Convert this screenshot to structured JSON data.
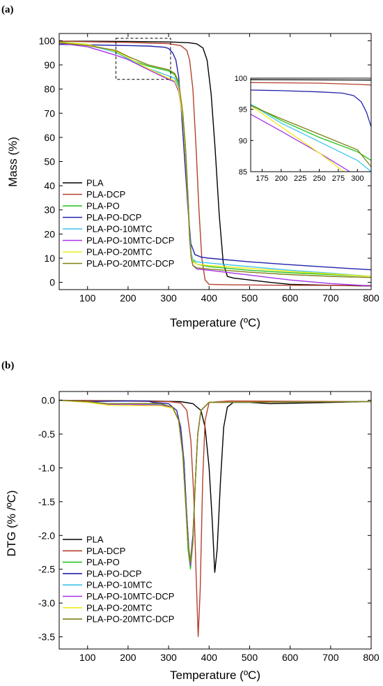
{
  "chart_data": [
    {
      "type": "line",
      "panel_label": "(a)",
      "title": "",
      "xlabel": "Temperature (ºC)",
      "ylabel": "Mass (%)",
      "xlim": [
        30,
        800
      ],
      "ylim": [
        -3,
        103
      ],
      "xticks": [
        100,
        200,
        300,
        400,
        500,
        600,
        700,
        800
      ],
      "yticks": [
        0,
        10,
        20,
        30,
        40,
        50,
        60,
        70,
        80,
        90,
        100
      ],
      "legend": "left",
      "colors": {
        "PLA": "#000000",
        "PLA-DCP": "#b5402c",
        "PLA-PO": "#22c41c",
        "PLA-PO-DCP": "#2222aa",
        "PLA-PO-10MTC": "#3fc4ee",
        "PLA-PO-10MTC-DCP": "#a632e8",
        "PLA-PO-20MTC": "#f0ec1c",
        "PLA-PO-20MTC-DCP": "#808017"
      },
      "series": [
        {
          "name": "PLA",
          "x": [
            30,
            100,
            200,
            300,
            350,
            370,
            385,
            395,
            405,
            415,
            425,
            435,
            445,
            460,
            500,
            550,
            600,
            700,
            800
          ],
          "y": [
            99.8,
            99.8,
            99.7,
            99.5,
            99.2,
            98.7,
            97,
            92,
            78,
            55,
            28,
            8,
            2.5,
            1.8,
            1,
            0,
            -0.8,
            -1.2,
            -1.5
          ]
        },
        {
          "name": "PLA-DCP",
          "x": [
            30,
            100,
            200,
            300,
            330,
            345,
            352,
            360,
            368,
            375,
            382,
            390,
            400,
            450,
            600,
            800
          ],
          "y": [
            99.8,
            99.6,
            99.3,
            98.8,
            98,
            96,
            92,
            80,
            55,
            30,
            10,
            1,
            -0.8,
            -1,
            -1.2,
            -1.3
          ]
        },
        {
          "name": "PLA-PO",
          "x": [
            30,
            100,
            170,
            200,
            250,
            300,
            315,
            325,
            335,
            342,
            348,
            352,
            356,
            360,
            370,
            400,
            500,
            600,
            700,
            800
          ],
          "y": [
            99.5,
            98.5,
            95.2,
            92.5,
            89.5,
            87.5,
            86,
            82,
            70,
            55,
            35,
            20,
            12,
            9,
            7.5,
            6.5,
            5,
            4,
            3.2,
            2.5
          ]
        },
        {
          "name": "PLA-PO-DCP",
          "x": [
            30,
            100,
            170,
            200,
            250,
            290,
            300,
            310,
            318,
            325,
            332,
            340,
            348,
            355,
            365,
            380,
            400,
            500,
            600,
            700,
            800
          ],
          "y": [
            98.5,
            98.3,
            98.1,
            98,
            97.8,
            97.3,
            96.8,
            95,
            92,
            85,
            70,
            50,
            30,
            16,
            11.5,
            10.5,
            10,
            8.5,
            7.3,
            6.2,
            5.2
          ]
        },
        {
          "name": "PLA-PO-10MTC",
          "x": [
            30,
            100,
            170,
            200,
            250,
            300,
            315,
            325,
            335,
            342,
            348,
            352,
            356,
            360,
            370,
            400,
            500,
            600,
            700,
            800
          ],
          "y": [
            99.3,
            98.2,
            95.3,
            92.5,
            88.5,
            85.5,
            84.5,
            81,
            70,
            55,
            35,
            20,
            12,
            9.5,
            8.5,
            8,
            6.5,
            5,
            3.8,
            2.5
          ]
        },
        {
          "name": "PLA-PO-10MTC-DCP",
          "x": [
            30,
            100,
            170,
            200,
            250,
            300,
            315,
            325,
            335,
            342,
            348,
            352,
            356,
            360,
            370,
            400,
            500,
            600,
            700,
            800
          ],
          "y": [
            99,
            97.5,
            94,
            92.2,
            88,
            84,
            83,
            79,
            68,
            52,
            33,
            18,
            10,
            7,
            5.5,
            5,
            3,
            1,
            -0.5,
            -1.5
          ]
        },
        {
          "name": "PLA-PO-20MTC",
          "x": [
            30,
            100,
            170,
            200,
            250,
            300,
            315,
            325,
            335,
            342,
            348,
            352,
            356,
            360,
            370,
            400,
            500,
            600,
            700,
            800
          ],
          "y": [
            99.4,
            98.5,
            95.6,
            93,
            88.5,
            84.5,
            83.5,
            80,
            68,
            52,
            33,
            18,
            11,
            8.5,
            7.5,
            7,
            5.8,
            4.5,
            3.5,
            2.5
          ]
        },
        {
          "name": "PLA-PO-20MTC-DCP",
          "x": [
            30,
            100,
            170,
            200,
            250,
            300,
            315,
            325,
            335,
            342,
            348,
            352,
            356,
            360,
            370,
            400,
            500,
            600,
            700,
            800
          ],
          "y": [
            99.2,
            98,
            96,
            93.5,
            90,
            88,
            86.5,
            83,
            70,
            55,
            35,
            18,
            10,
            7,
            6,
            5.5,
            4.2,
            3.2,
            2.5,
            2
          ]
        }
      ],
      "inset": {
        "xlim": [
          160,
          318
        ],
        "ylim": [
          85,
          100
        ],
        "xticks": [
          175,
          200,
          225,
          250,
          275,
          300
        ],
        "yticks": [
          85,
          90,
          95,
          100
        ],
        "box_region": {
          "x": [
            170,
            305
          ],
          "y": [
            84,
            101
          ]
        },
        "series": [
          {
            "name": "PLA",
            "x": [
              160,
              318
            ],
            "y": [
              99.75,
              99.7
            ]
          },
          {
            "name": "PLA-DCP",
            "x": [
              160,
              250,
              300,
              318
            ],
            "y": [
              99.3,
              99.2,
              99,
              98.9
            ]
          },
          {
            "name": "PLA-PO",
            "x": [
              160,
              200,
              250,
              300,
              318
            ],
            "y": [
              95.8,
              93.2,
              90.5,
              88.2,
              86.8
            ]
          },
          {
            "name": "PLA-PO-DCP",
            "x": [
              160,
              200,
              250,
              280,
              295,
              305,
              312,
              318
            ],
            "y": [
              98.1,
              98.0,
              97.8,
              97.6,
              97.2,
              96.2,
              94.5,
              92.2
            ]
          },
          {
            "name": "PLA-PO-10MTC",
            "x": [
              160,
              200,
              250,
              300,
              318
            ],
            "y": [
              95.8,
              92.8,
              89.8,
              86.8,
              85
            ]
          },
          {
            "name": "PLA-PO-10MTC-DCP",
            "x": [
              160,
              200,
              250,
              290
            ],
            "y": [
              94.2,
              91.5,
              88,
              85
            ]
          },
          {
            "name": "PLA-PO-20MTC",
            "x": [
              160,
              200,
              250,
              282
            ],
            "y": [
              95.6,
              92.2,
              88,
              85
            ]
          },
          {
            "name": "PLA-PO-20MTC-DCP",
            "x": [
              160,
              200,
              250,
              300,
              318
            ],
            "y": [
              95.6,
              93.5,
              91,
              88.5,
              85.8
            ]
          }
        ]
      }
    },
    {
      "type": "line",
      "panel_label": "(b)",
      "title": "",
      "xlabel": "Temperature (ºC)",
      "ylabel": "DTG (% /ºC)",
      "xlim": [
        30,
        800
      ],
      "ylim": [
        -3.68,
        0.13
      ],
      "xticks": [
        100,
        200,
        300,
        400,
        500,
        600,
        700,
        800
      ],
      "yticks": [
        0.0,
        -0.5,
        -1.0,
        -1.5,
        -2.0,
        -2.5,
        -3.0,
        -3.5
      ],
      "ytick_labels": [
        "0.0",
        "-0.5",
        "-1.0",
        "-1.5",
        "-2.0",
        "-2.5",
        "-3.0",
        "-3.5"
      ],
      "legend": "bottom-left",
      "series": [
        {
          "name": "PLA",
          "x": [
            30,
            250,
            330,
            360,
            380,
            390,
            400,
            408,
            414,
            420,
            428,
            436,
            445,
            460,
            500,
            550,
            800
          ],
          "y": [
            0,
            -0.01,
            -0.02,
            -0.05,
            -0.15,
            -0.4,
            -1.0,
            -1.8,
            -2.55,
            -2.2,
            -1.2,
            -0.4,
            -0.1,
            -0.03,
            -0.03,
            -0.05,
            -0.02
          ]
        },
        {
          "name": "PLA-DCP",
          "x": [
            30,
            300,
            330,
            345,
            355,
            362,
            368,
            373,
            378,
            384,
            390,
            400,
            450,
            800
          ],
          "y": [
            0,
            -0.02,
            -0.04,
            -0.15,
            -0.6,
            -1.4,
            -2.6,
            -3.5,
            -2.8,
            -1.2,
            -0.3,
            -0.03,
            -0.01,
            -0.02
          ]
        },
        {
          "name": "PLA-PO",
          "x": [
            30,
            100,
            150,
            200,
            280,
            310,
            325,
            335,
            342,
            348,
            354,
            360,
            366,
            372,
            380,
            400,
            800
          ],
          "y": [
            0,
            -0.02,
            -0.06,
            -0.05,
            -0.05,
            -0.1,
            -0.3,
            -0.8,
            -1.5,
            -2.2,
            -2.5,
            -2.1,
            -1.2,
            -0.5,
            -0.15,
            -0.03,
            -0.02
          ]
        },
        {
          "name": "PLA-PO-DCP",
          "x": [
            30,
            100,
            200,
            250,
            260,
            300,
            320,
            330,
            338,
            344,
            350,
            354,
            360,
            366,
            372,
            380,
            400,
            800
          ],
          "y": [
            0,
            -0.02,
            -0.01,
            -0.01,
            -0.03,
            -0.05,
            -0.15,
            -0.4,
            -0.9,
            -1.6,
            -2.2,
            -2.38,
            -2.0,
            -1.2,
            -0.5,
            -0.15,
            -0.03,
            -0.02
          ]
        },
        {
          "name": "PLA-PO-10MTC",
          "x": [
            30,
            100,
            150,
            200,
            280,
            310,
            325,
            335,
            342,
            348,
            354,
            360,
            366,
            372,
            380,
            400,
            800
          ],
          "y": [
            0,
            -0.02,
            -0.05,
            -0.05,
            -0.06,
            -0.1,
            -0.3,
            -0.8,
            -1.5,
            -2.1,
            -2.42,
            -2.1,
            -1.2,
            -0.5,
            -0.15,
            -0.03,
            -0.02
          ]
        },
        {
          "name": "PLA-PO-10MTC-DCP",
          "x": [
            30,
            100,
            150,
            200,
            280,
            310,
            325,
            335,
            342,
            348,
            354,
            360,
            366,
            372,
            380,
            400,
            800
          ],
          "y": [
            0,
            -0.03,
            -0.06,
            -0.06,
            -0.07,
            -0.1,
            -0.3,
            -0.8,
            -1.5,
            -2.1,
            -2.45,
            -2.1,
            -1.2,
            -0.5,
            -0.15,
            -0.03,
            -0.02
          ]
        },
        {
          "name": "PLA-PO-20MTC",
          "x": [
            30,
            100,
            150,
            200,
            280,
            310,
            325,
            335,
            342,
            348,
            354,
            360,
            366,
            372,
            380,
            400,
            800
          ],
          "y": [
            0,
            -0.03,
            -0.07,
            -0.08,
            -0.08,
            -0.12,
            -0.3,
            -0.8,
            -1.5,
            -2.1,
            -2.4,
            -2.1,
            -1.2,
            -0.5,
            -0.15,
            -0.03,
            -0.02
          ]
        },
        {
          "name": "PLA-PO-20MTC-DCP",
          "x": [
            30,
            100,
            150,
            200,
            280,
            310,
            325,
            335,
            342,
            348,
            354,
            360,
            366,
            372,
            380,
            400,
            800
          ],
          "y": [
            0,
            -0.02,
            -0.05,
            -0.05,
            -0.05,
            -0.1,
            -0.3,
            -0.8,
            -1.5,
            -2.1,
            -2.4,
            -2.1,
            -1.2,
            -0.5,
            -0.15,
            -0.03,
            -0.02
          ]
        }
      ]
    }
  ]
}
